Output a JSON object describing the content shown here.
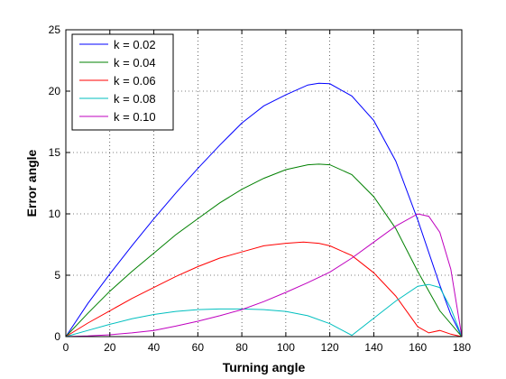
{
  "chart_data": {
    "type": "line",
    "xlabel": "Turning angle",
    "ylabel": "Error angle",
    "xlim": [
      0,
      180
    ],
    "ylim": [
      0,
      25
    ],
    "xticks": [
      0,
      20,
      40,
      60,
      80,
      100,
      120,
      140,
      160,
      180
    ],
    "yticks": [
      0,
      5,
      10,
      15,
      20,
      25
    ],
    "grid": true,
    "legend_position": "top-left",
    "series": [
      {
        "name": "k = 0.02",
        "color": "#0000ff",
        "x": [
          0,
          10,
          20,
          30,
          40,
          50,
          60,
          70,
          80,
          90,
          100,
          110,
          115,
          120,
          130,
          140,
          150,
          160,
          170,
          175,
          180
        ],
        "y": [
          0,
          2.7,
          5.1,
          7.4,
          9.6,
          11.7,
          13.7,
          15.6,
          17.4,
          18.8,
          19.7,
          20.5,
          20.65,
          20.6,
          19.6,
          17.6,
          14.3,
          9.5,
          4.2,
          1.8,
          0
        ]
      },
      {
        "name": "k = 0.04",
        "color": "#008000",
        "x": [
          0,
          10,
          20,
          30,
          40,
          50,
          60,
          70,
          80,
          90,
          100,
          110,
          115,
          120,
          130,
          140,
          150,
          160,
          170,
          180
        ],
        "y": [
          0,
          1.9,
          3.7,
          5.3,
          6.8,
          8.3,
          9.6,
          10.9,
          12.0,
          12.9,
          13.6,
          14.0,
          14.05,
          14.0,
          13.2,
          11.4,
          8.8,
          5.3,
          2.1,
          0
        ]
      },
      {
        "name": "k = 0.06",
        "color": "#ff0000",
        "x": [
          0,
          10,
          20,
          30,
          40,
          50,
          60,
          70,
          80,
          90,
          100,
          108,
          115,
          120,
          130,
          140,
          150,
          160,
          165,
          170,
          175,
          180
        ],
        "y": [
          0,
          1.1,
          2.1,
          3.1,
          4.0,
          4.9,
          5.7,
          6.4,
          6.9,
          7.4,
          7.6,
          7.7,
          7.6,
          7.4,
          6.6,
          5.2,
          3.3,
          0.8,
          0.3,
          0.5,
          0.2,
          0
        ]
      },
      {
        "name": "k = 0.08",
        "color": "#00bfbf",
        "x": [
          0,
          10,
          20,
          30,
          40,
          50,
          60,
          70,
          80,
          90,
          100,
          110,
          120,
          130,
          140,
          150,
          160,
          165,
          170,
          175,
          180
        ],
        "y": [
          0,
          0.5,
          1.0,
          1.45,
          1.8,
          2.05,
          2.2,
          2.25,
          2.25,
          2.2,
          2.05,
          1.7,
          1.05,
          0.1,
          1.5,
          2.9,
          4.1,
          4.25,
          4.0,
          2.3,
          0
        ]
      },
      {
        "name": "k = 0.10",
        "color": "#bf00bf",
        "x": [
          0,
          10,
          20,
          30,
          40,
          50,
          60,
          70,
          80,
          90,
          100,
          110,
          120,
          130,
          140,
          150,
          160,
          165,
          170,
          175,
          180
        ],
        "y": [
          0,
          0.05,
          0.15,
          0.3,
          0.5,
          0.85,
          1.25,
          1.7,
          2.2,
          2.85,
          3.6,
          4.4,
          5.25,
          6.4,
          7.7,
          9.0,
          10.0,
          9.8,
          8.5,
          5.5,
          0
        ]
      }
    ]
  }
}
